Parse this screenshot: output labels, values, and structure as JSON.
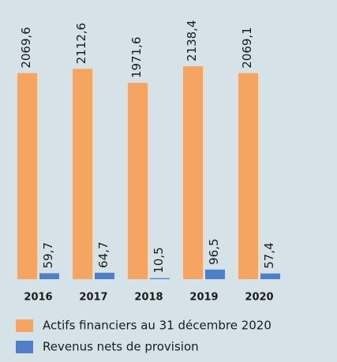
{
  "chart_data": {
    "type": "bar",
    "categories": [
      "2016",
      "2017",
      "2018",
      "2019",
      "2020"
    ],
    "series": [
      {
        "name": "Actifs financiers au 31 décembre 2020",
        "color": "#f5a462",
        "values": [
          2069.6,
          2112.6,
          1971.6,
          2138.4,
          2069.1
        ],
        "value_labels": [
          "2069,6",
          "2112,6",
          "1971,6",
          "2138,4",
          "2069,1"
        ]
      },
      {
        "name": "Revenus nets de provision",
        "color": "#4f80c5",
        "values": [
          59.7,
          64.7,
          10.5,
          96.5,
          57.4
        ],
        "value_labels": [
          "59,7",
          "64,7",
          "10,5",
          "96,5",
          "57,4"
        ]
      }
    ]
  }
}
